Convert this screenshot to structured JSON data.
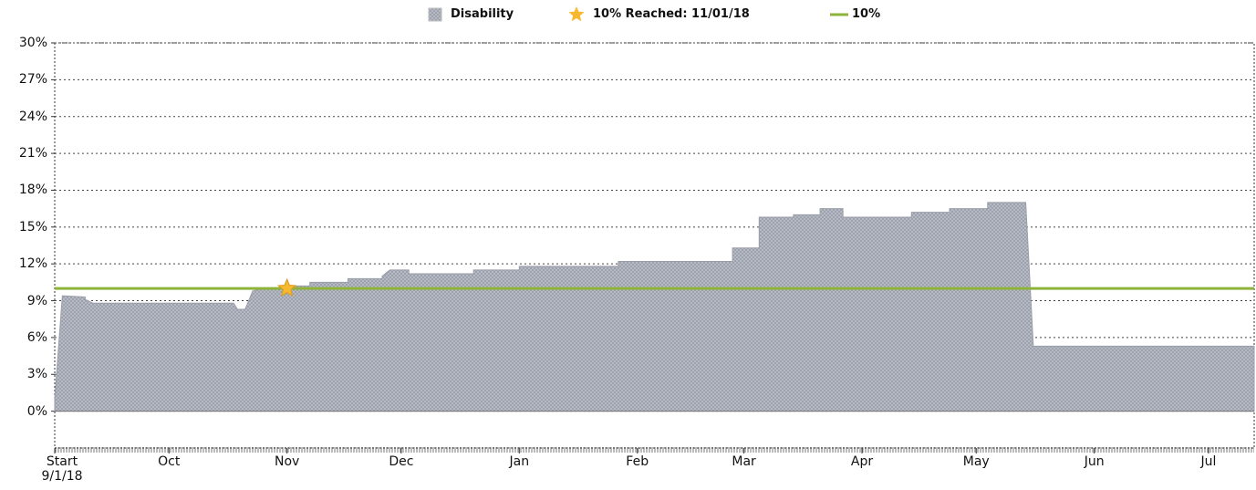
{
  "chart_data": {
    "type": "area",
    "series": [
      {
        "name": "Disability",
        "color": "#b3b7c3",
        "x": [
          0,
          2,
          8,
          8,
          10,
          47,
          48,
          50,
          52,
          55,
          61,
          61,
          67,
          67,
          77,
          77,
          86,
          86,
          88,
          93,
          93,
          110,
          110,
          122,
          122,
          148,
          148,
          178,
          178,
          185,
          185,
          194,
          194,
          201,
          201,
          207,
          207,
          225,
          225,
          235,
          235,
          245,
          245,
          255,
          257,
          315
        ],
        "values": [
          1.0,
          9.4,
          9.3,
          9.1,
          8.8,
          8.8,
          8.3,
          8.3,
          9.8,
          10.0,
          10.0,
          10.2,
          10.2,
          10.5,
          10.5,
          10.8,
          10.8,
          11.0,
          11.5,
          11.5,
          11.2,
          11.2,
          11.5,
          11.5,
          11.8,
          11.8,
          12.2,
          12.2,
          13.3,
          13.3,
          15.8,
          15.8,
          16.0,
          16.0,
          16.5,
          16.5,
          15.8,
          15.8,
          16.2,
          16.2,
          16.5,
          16.5,
          17.0,
          17.0,
          5.3,
          5.3
        ]
      }
    ],
    "reference_line": {
      "name": "10%",
      "value": 10,
      "color": "#8db33a"
    },
    "marker": {
      "name": "10% Reached: 11/01/18",
      "x": 61,
      "value": 10,
      "color": "#f5b82e"
    },
    "xlim": [
      0,
      315
    ],
    "xticks": [
      {
        "value": 0,
        "label": "Start\n9/1/18"
      },
      {
        "value": 30,
        "label": "Oct"
      },
      {
        "value": 61,
        "label": "Nov"
      },
      {
        "value": 91,
        "label": "Dec"
      },
      {
        "value": 122,
        "label": "Jan"
      },
      {
        "value": 153,
        "label": "Feb"
      },
      {
        "value": 181,
        "label": "Mar"
      },
      {
        "value": 212,
        "label": "Apr"
      },
      {
        "value": 242,
        "label": "May"
      },
      {
        "value": 273,
        "label": "Jun"
      },
      {
        "value": 303,
        "label": "Jul"
      }
    ],
    "ylim": [
      -3,
      30
    ],
    "yticks": [
      {
        "value": 0,
        "label": "0%"
      },
      {
        "value": 3,
        "label": "3%"
      },
      {
        "value": 6,
        "label": "6%"
      },
      {
        "value": 9,
        "label": "9%"
      },
      {
        "value": 12,
        "label": "12%"
      },
      {
        "value": 15,
        "label": "15%"
      },
      {
        "value": 18,
        "label": "18%"
      },
      {
        "value": 21,
        "label": "21%"
      },
      {
        "value": 24,
        "label": "24%"
      },
      {
        "value": 27,
        "label": "27%"
      },
      {
        "value": 30,
        "label": "30%"
      }
    ],
    "grid": true
  }
}
